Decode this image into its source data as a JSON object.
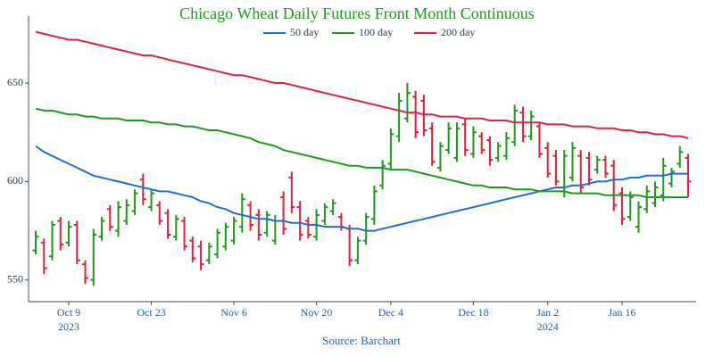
{
  "chart_data": {
    "type": "ohlc",
    "title": "Chicago Wheat Daily Futures Front Month Continuous",
    "source": "Source: Barchart",
    "x": [
      "2023-10-03",
      "2023-10-04",
      "2023-10-05",
      "2023-10-06",
      "2023-10-09",
      "2023-10-10",
      "2023-10-11",
      "2023-10-12",
      "2023-10-13",
      "2023-10-16",
      "2023-10-17",
      "2023-10-18",
      "2023-10-19",
      "2023-10-20",
      "2023-10-23",
      "2023-10-24",
      "2023-10-25",
      "2023-10-26",
      "2023-10-27",
      "2023-10-30",
      "2023-10-31",
      "2023-11-01",
      "2023-11-02",
      "2023-11-03",
      "2023-11-06",
      "2023-11-07",
      "2023-11-08",
      "2023-11-09",
      "2023-11-10",
      "2023-11-13",
      "2023-11-14",
      "2023-11-15",
      "2023-11-16",
      "2023-11-17",
      "2023-11-20",
      "2023-11-21",
      "2023-11-22",
      "2023-11-24",
      "2023-11-27",
      "2023-11-28",
      "2023-11-29",
      "2023-11-30",
      "2023-12-01",
      "2023-12-04",
      "2023-12-05",
      "2023-12-06",
      "2023-12-07",
      "2023-12-08",
      "2023-12-11",
      "2023-12-12",
      "2023-12-13",
      "2023-12-14",
      "2023-12-15",
      "2023-12-18",
      "2023-12-19",
      "2023-12-20",
      "2023-12-21",
      "2023-12-22",
      "2023-12-26",
      "2023-12-27",
      "2023-12-28",
      "2023-12-29",
      "2024-01-02",
      "2024-01-03",
      "2024-01-04",
      "2024-01-05",
      "2024-01-08",
      "2024-01-09",
      "2024-01-10",
      "2024-01-11",
      "2024-01-12",
      "2024-01-16",
      "2024-01-17",
      "2024-01-18",
      "2024-01-19",
      "2024-01-22",
      "2024-01-23",
      "2024-01-24",
      "2024-01-25",
      "2024-01-26"
    ],
    "ohlc": {
      "up_color": "#1e9a1e",
      "down_color": "#e0203c",
      "open": [
        565,
        569,
        562,
        580,
        569,
        578,
        558,
        550,
        572,
        586,
        575,
        580,
        585,
        601,
        587,
        588,
        584,
        572,
        580,
        570,
        567,
        560,
        563,
        567,
        570,
        577,
        588,
        583,
        574,
        570,
        592,
        602,
        587,
        580,
        572,
        580,
        585,
        582,
        576,
        560,
        570,
        581,
        598,
        609,
        623,
        632,
        643,
        641,
        627,
        607,
        616,
        612,
        629,
        614,
        623,
        621,
        612,
        613,
        620,
        635,
        623,
        628,
        617,
        613,
        595,
        602,
        613,
        612,
        606,
        611,
        608,
        594,
        582,
        577,
        586,
        589,
        593,
        599,
        609,
        612
      ],
      "high": [
        575,
        571,
        580,
        582,
        580,
        580,
        560,
        576,
        582,
        588,
        590,
        591,
        596,
        604,
        596,
        590,
        586,
        583,
        582,
        572,
        570,
        569,
        576,
        579,
        582,
        594,
        590,
        586,
        585,
        583,
        595,
        605,
        590,
        582,
        586,
        589,
        591,
        584,
        578,
        572,
        584,
        598,
        611,
        627,
        645,
        650,
        646,
        644,
        630,
        620,
        630,
        630,
        632,
        628,
        625,
        623,
        620,
        625,
        639,
        638,
        636,
        630,
        620,
        616,
        616,
        620,
        616,
        615,
        613,
        613,
        611,
        597,
        595,
        590,
        598,
        600,
        612,
        607,
        618,
        614
      ],
      "low": [
        563,
        553,
        560,
        565,
        567,
        558,
        548,
        547,
        570,
        575,
        572,
        578,
        583,
        588,
        585,
        578,
        571,
        570,
        565,
        559,
        555,
        558,
        561,
        565,
        568,
        574,
        575,
        570,
        572,
        568,
        573,
        584,
        570,
        571,
        570,
        578,
        583,
        575,
        557,
        558,
        568,
        578,
        596,
        606,
        620,
        630,
        622,
        623,
        608,
        605,
        614,
        610,
        613,
        612,
        614,
        608,
        610,
        611,
        618,
        620,
        621,
        612,
        602,
        598,
        592,
        600,
        594,
        598,
        604,
        602,
        585,
        578,
        580,
        574,
        584,
        587,
        590,
        597,
        607,
        592
      ],
      "close": [
        572,
        556,
        578,
        568,
        577,
        560,
        551,
        573,
        580,
        577,
        587,
        588,
        594,
        591,
        594,
        580,
        573,
        581,
        567,
        561,
        558,
        567,
        574,
        577,
        580,
        591,
        578,
        573,
        583,
        580,
        576,
        587,
        573,
        573,
        583,
        587,
        589,
        577,
        560,
        570,
        582,
        595,
        608,
        624,
        641,
        645,
        625,
        626,
        610,
        618,
        627,
        627,
        616,
        625,
        616,
        611,
        618,
        622,
        636,
        623,
        633,
        614,
        604,
        600,
        613,
        617,
        597,
        601,
        611,
        604,
        588,
        581,
        592,
        587,
        595,
        597,
        608,
        605,
        615,
        600
      ]
    },
    "series": [
      {
        "name": "50 day",
        "color": "#1f6fd6",
        "values": [
          618,
          615,
          613,
          611,
          609,
          607,
          605,
          603,
          602,
          601,
          600,
          599,
          598,
          597,
          596,
          595,
          595,
          594,
          593,
          592,
          590,
          589,
          587,
          586,
          584,
          583,
          582,
          581,
          581,
          580,
          580,
          579,
          579,
          578,
          578,
          577,
          577,
          577,
          576,
          576,
          575,
          575,
          576,
          577,
          578,
          579,
          580,
          581,
          582,
          583,
          584,
          585,
          586,
          587,
          588,
          589,
          590,
          591,
          592,
          593,
          594,
          595,
          596,
          597,
          597,
          598,
          598,
          599,
          600,
          600,
          601,
          601,
          602,
          602,
          603,
          603,
          603,
          604,
          604,
          604
        ]
      },
      {
        "name": "100 day",
        "color": "#1e9a1e",
        "values": [
          637,
          636,
          636,
          635,
          634,
          634,
          633,
          633,
          632,
          632,
          632,
          631,
          631,
          631,
          630,
          630,
          629,
          629,
          628,
          628,
          627,
          626,
          626,
          625,
          624,
          623,
          622,
          620,
          619,
          618,
          616,
          615,
          614,
          613,
          612,
          611,
          610,
          609,
          608,
          608,
          607,
          607,
          607,
          606,
          606,
          606,
          605,
          604,
          603,
          602,
          601,
          600,
          599,
          598,
          598,
          597,
          597,
          597,
          596,
          596,
          596,
          595,
          595,
          595,
          595,
          594,
          594,
          594,
          594,
          593,
          593,
          593,
          593,
          593,
          592,
          592,
          592,
          592,
          592,
          592
        ]
      },
      {
        "name": "200 day",
        "color": "#dc2340",
        "values": [
          676,
          675,
          674,
          673,
          672,
          672,
          671,
          670,
          669,
          668,
          667,
          666,
          665,
          664,
          664,
          663,
          662,
          661,
          660,
          659,
          658,
          657,
          656,
          655,
          654,
          654,
          653,
          652,
          651,
          650,
          650,
          649,
          648,
          647,
          646,
          645,
          644,
          643,
          642,
          641,
          640,
          639,
          638,
          637,
          636,
          635,
          635,
          634,
          634,
          633,
          633,
          633,
          632,
          632,
          632,
          631,
          631,
          631,
          630,
          630,
          630,
          630,
          629,
          629,
          629,
          628,
          628,
          628,
          627,
          627,
          627,
          626,
          626,
          625,
          625,
          624,
          624,
          623,
          623,
          622
        ]
      }
    ],
    "ylim": [
      539,
      684
    ],
    "yticks": [
      550,
      600,
      650
    ],
    "xticks": [
      {
        "value": "2023-10-09",
        "label": "Oct 9",
        "sublabel": "2023"
      },
      {
        "value": "2023-10-23",
        "label": "Oct 23"
      },
      {
        "value": "2023-11-06",
        "label": "Nov 6"
      },
      {
        "value": "2023-11-20",
        "label": "Nov 20"
      },
      {
        "value": "2023-12-04",
        "label": "Dec 4"
      },
      {
        "value": "2023-12-18",
        "label": "Dec 18"
      },
      {
        "value": "2024-01-02",
        "label": "Jan 2",
        "sublabel": "2024"
      },
      {
        "value": "2024-01-16",
        "label": "Jan 16"
      }
    ],
    "grid": false
  }
}
